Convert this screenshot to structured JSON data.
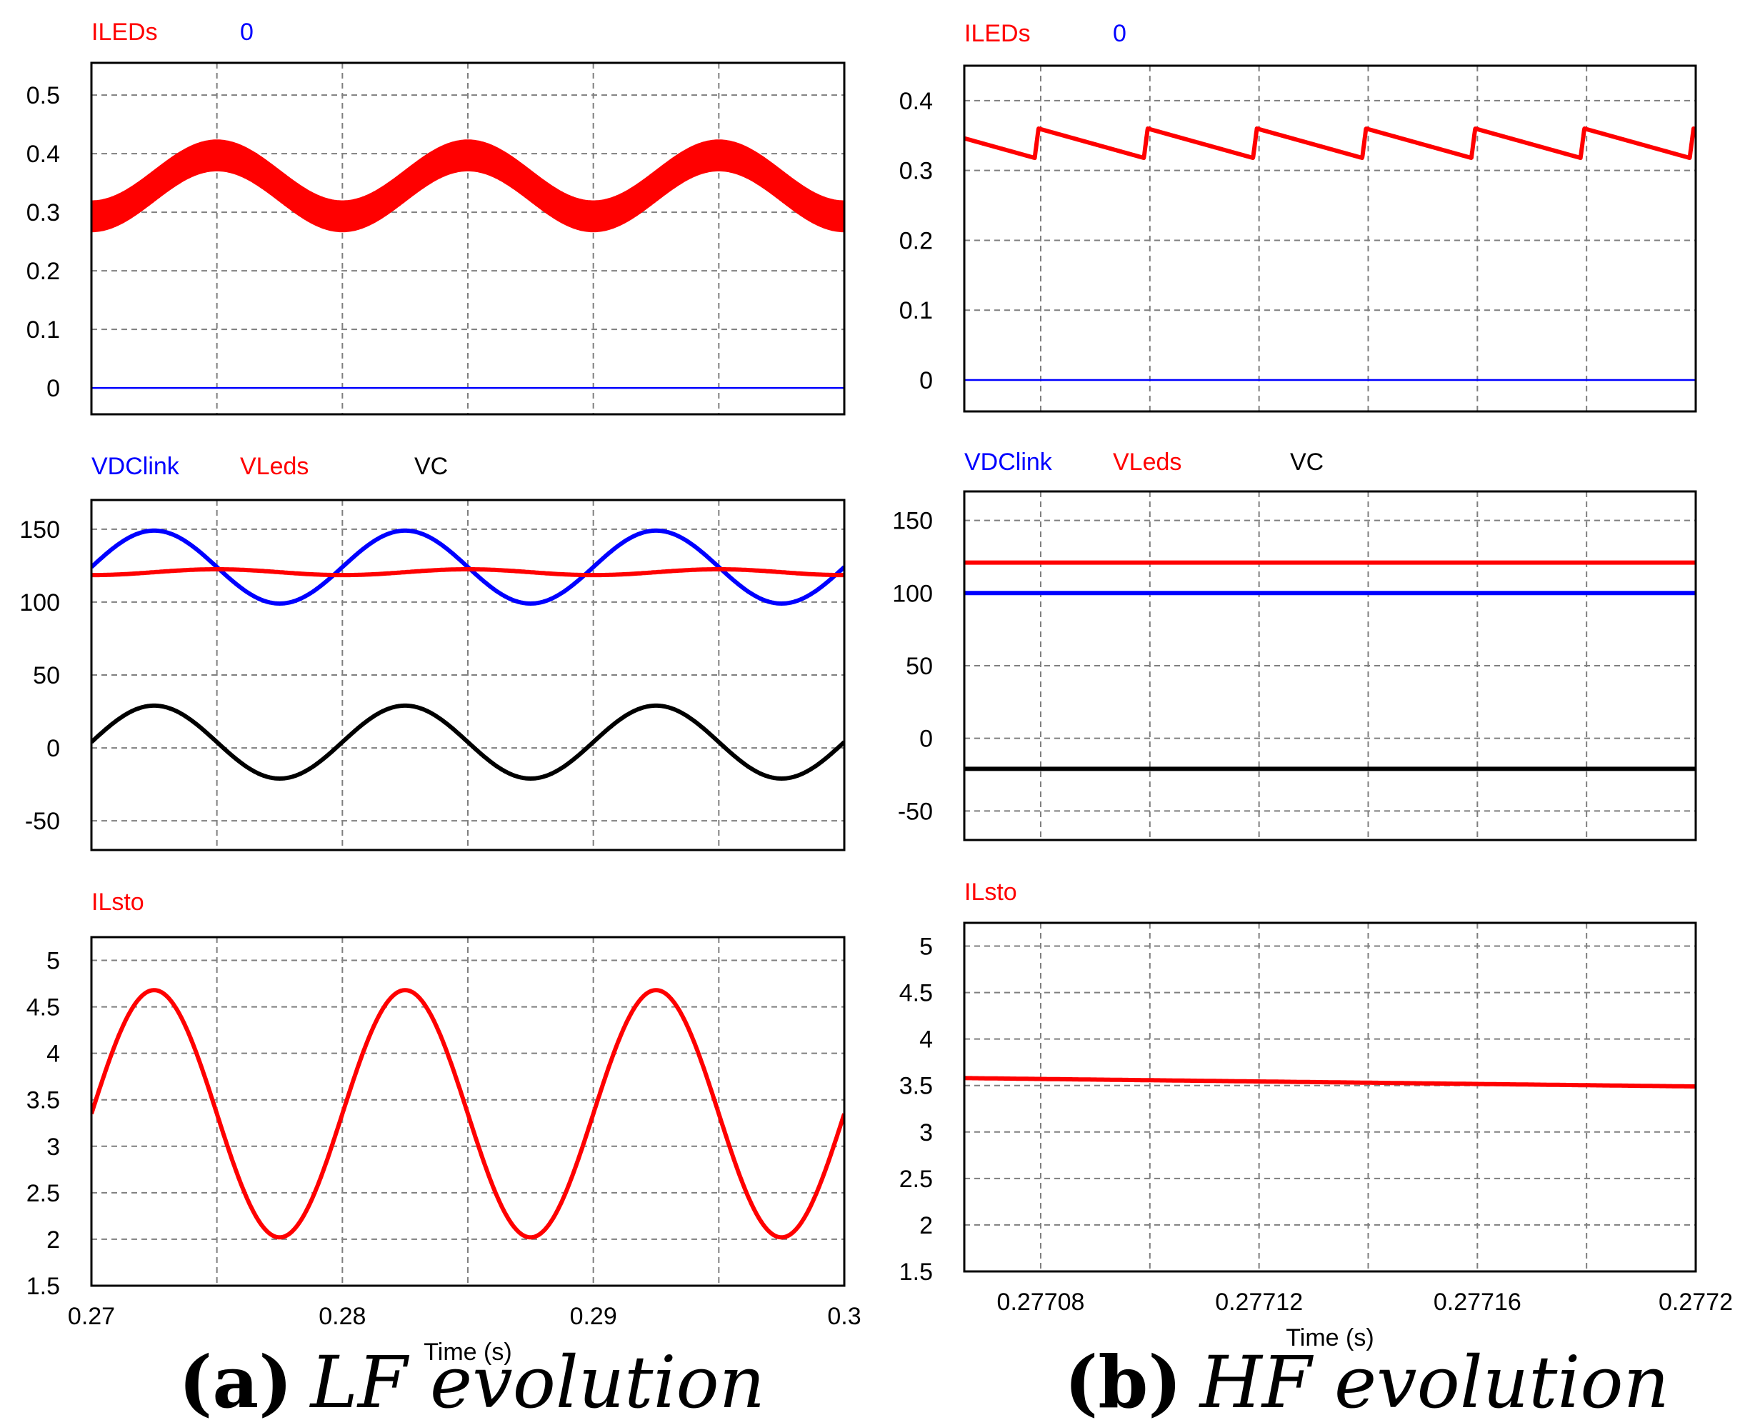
{
  "captions": {
    "a_label": "(a)",
    "a_text": "LF evolution",
    "b_label": "(b)",
    "b_text": "HF evolution"
  },
  "colors": {
    "red": "#ff0000",
    "blue": "#0000ff",
    "black": "#000000"
  },
  "chart_data": [
    {
      "id": "a1",
      "type": "line",
      "column": "a",
      "row": 0,
      "legend": [
        {
          "name": "ILEDs",
          "color": "#ff0000"
        },
        {
          "name": "0",
          "color": "#0000ff"
        }
      ],
      "xlim": [
        0.27,
        0.3
      ],
      "ylim": [
        -0.045,
        0.555
      ],
      "xgrid": [
        0.275,
        0.28,
        0.285,
        0.29,
        0.295
      ],
      "yticks": [
        0,
        0.1,
        0.2,
        0.3,
        0.4,
        0.5
      ],
      "series": [
        {
          "name": "ILEDs",
          "color": "#ff0000",
          "fn": "sin",
          "center": 0.345,
          "amp": 0.052,
          "freq": 100,
          "phase": 0.275,
          "band": 0.026
        },
        {
          "name": "0",
          "color": "#0000ff",
          "fn": "const",
          "value": 0
        }
      ]
    },
    {
      "id": "a2",
      "type": "line",
      "column": "a",
      "row": 1,
      "legend": [
        {
          "name": "VDClink",
          "color": "#0000ff"
        },
        {
          "name": "VLeds",
          "color": "#ff0000"
        },
        {
          "name": "VC",
          "color": "#000000"
        }
      ],
      "xlim": [
        0.27,
        0.3
      ],
      "ylim": [
        -70,
        170
      ],
      "xgrid": [
        0.275,
        0.28,
        0.285,
        0.29,
        0.295
      ],
      "yticks": [
        -50,
        0,
        50,
        100,
        150
      ],
      "series": [
        {
          "name": "VDClink",
          "color": "#0000ff",
          "fn": "sin",
          "center": 124,
          "amp": 25,
          "freq": 100,
          "phase": 0.2725
        },
        {
          "name": "VLeds",
          "color": "#ff0000",
          "fn": "sin",
          "center": 120.5,
          "amp": 2,
          "freq": 100,
          "phase": 0.275
        },
        {
          "name": "VC",
          "color": "#000000",
          "fn": "sin",
          "center": 4,
          "amp": 25,
          "freq": 100,
          "phase": 0.2725
        }
      ]
    },
    {
      "id": "a3",
      "type": "line",
      "column": "a",
      "row": 2,
      "legend": [
        {
          "name": "ILsto",
          "color": "#ff0000"
        }
      ],
      "xlim": [
        0.27,
        0.3
      ],
      "ylim": [
        1.5,
        5.25
      ],
      "xgrid": [
        0.275,
        0.28,
        0.285,
        0.29,
        0.295
      ],
      "yticks": [
        1.5,
        2,
        2.5,
        3,
        3.5,
        4,
        4.5,
        5
      ],
      "xticks": [
        0.27,
        0.28,
        0.29,
        0.3
      ],
      "xticklabels": [
        "0.27",
        "0.28",
        "0.29",
        "0.3"
      ],
      "xlabel": "Time (s)",
      "series": [
        {
          "name": "ILsto",
          "color": "#ff0000",
          "fn": "sin",
          "center": 3.35,
          "amp": 1.33,
          "freq": 100,
          "phase": 0.2725
        }
      ]
    },
    {
      "id": "b1",
      "type": "line",
      "column": "b",
      "row": 0,
      "legend": [
        {
          "name": "ILEDs",
          "color": "#ff0000"
        },
        {
          "name": "0",
          "color": "#0000ff"
        }
      ],
      "xlim": [
        0.277066,
        0.2772
      ],
      "ylim": [
        -0.045,
        0.45
      ],
      "xgrid": [
        0.27708,
        0.2771,
        0.27712,
        0.27714,
        0.27716,
        0.27718
      ],
      "yticks": [
        0,
        0.1,
        0.2,
        0.3,
        0.4
      ],
      "series": [
        {
          "name": "ILEDs",
          "color": "#ff0000",
          "fn": "saw",
          "period": 2e-05,
          "start": 0.2770796,
          "high": 0.36,
          "low": 0.318,
          "rise": 7e-07
        },
        {
          "name": "0",
          "color": "#0000ff",
          "fn": "const",
          "value": 0
        }
      ]
    },
    {
      "id": "b2",
      "type": "line",
      "column": "b",
      "row": 1,
      "legend": [
        {
          "name": "VDClink",
          "color": "#0000ff"
        },
        {
          "name": "VLeds",
          "color": "#ff0000"
        },
        {
          "name": "VC",
          "color": "#000000"
        }
      ],
      "xlim": [
        0.277066,
        0.2772
      ],
      "ylim": [
        -70,
        170
      ],
      "xgrid": [
        0.27708,
        0.2771,
        0.27712,
        0.27714,
        0.27716,
        0.27718
      ],
      "yticks": [
        -50,
        0,
        50,
        100,
        150
      ],
      "series": [
        {
          "name": "VLeds",
          "color": "#ff0000",
          "fn": "const",
          "value": 121
        },
        {
          "name": "VDClink",
          "color": "#0000ff",
          "fn": "const",
          "value": 100
        },
        {
          "name": "VC",
          "color": "#000000",
          "fn": "const",
          "value": -21
        }
      ]
    },
    {
      "id": "b3",
      "type": "line",
      "column": "b",
      "row": 2,
      "legend": [
        {
          "name": "ILsto",
          "color": "#ff0000"
        }
      ],
      "xlim": [
        0.277066,
        0.2772
      ],
      "ylim": [
        1.5,
        5.25
      ],
      "xgrid": [
        0.27708,
        0.2771,
        0.27712,
        0.27714,
        0.27716,
        0.27718
      ],
      "yticks": [
        1.5,
        2,
        2.5,
        3,
        3.5,
        4,
        4.5,
        5
      ],
      "xticks": [
        0.27708,
        0.27712,
        0.27716,
        0.2772
      ],
      "xticklabels": [
        "0.27708",
        "0.27712",
        "0.27716",
        "0.2772"
      ],
      "xlabel": "Time (s)",
      "series": [
        {
          "name": "ILsto",
          "color": "#ff0000",
          "fn": "linear",
          "x0": 0.277066,
          "y0": 3.58,
          "x1": 0.2772,
          "y1": 3.49
        }
      ]
    }
  ]
}
